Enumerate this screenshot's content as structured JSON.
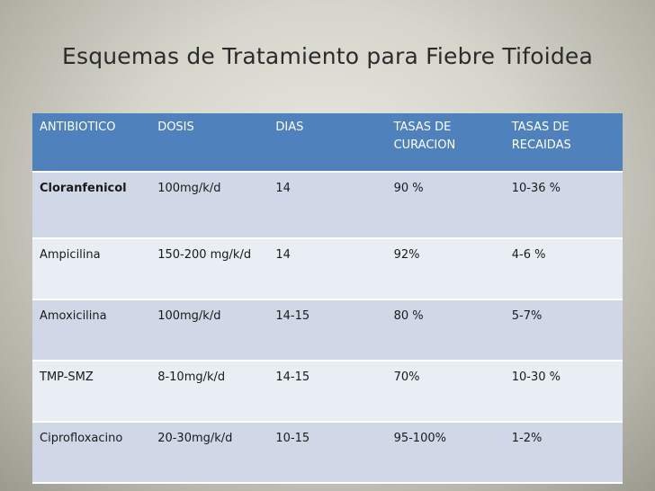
{
  "title": "Esquemas de Tratamiento para Fiebre Tifoidea",
  "table": {
    "headers": [
      "ANTIBIOTICO",
      "DOSIS",
      "DIAS",
      "TASAS DE CURACION",
      "TASAS DE RECAIDAS"
    ],
    "rows": [
      [
        "Cloranfenicol",
        "100mg/k/d",
        "14",
        "90 %",
        "10-36 %"
      ],
      [
        "Ampicilina",
        "150-200 mg/k/d",
        "14",
        "92%",
        "4-6 %"
      ],
      [
        "Amoxicilina",
        "100mg/k/d",
        "14-15",
        "80 %",
        " 5-7%"
      ],
      [
        "TMP-SMZ",
        "8-10mg/k/d",
        "14-15",
        "70%",
        "10-30 %"
      ],
      [
        "Ciprofloxacino",
        "20-30mg/k/d",
        "10-15",
        "95-100%",
        "1-2%"
      ]
    ]
  },
  "colors": {
    "header_bg": "#4f81bd",
    "row_odd": "#d0d8e8",
    "row_even": "#e9edf4"
  }
}
